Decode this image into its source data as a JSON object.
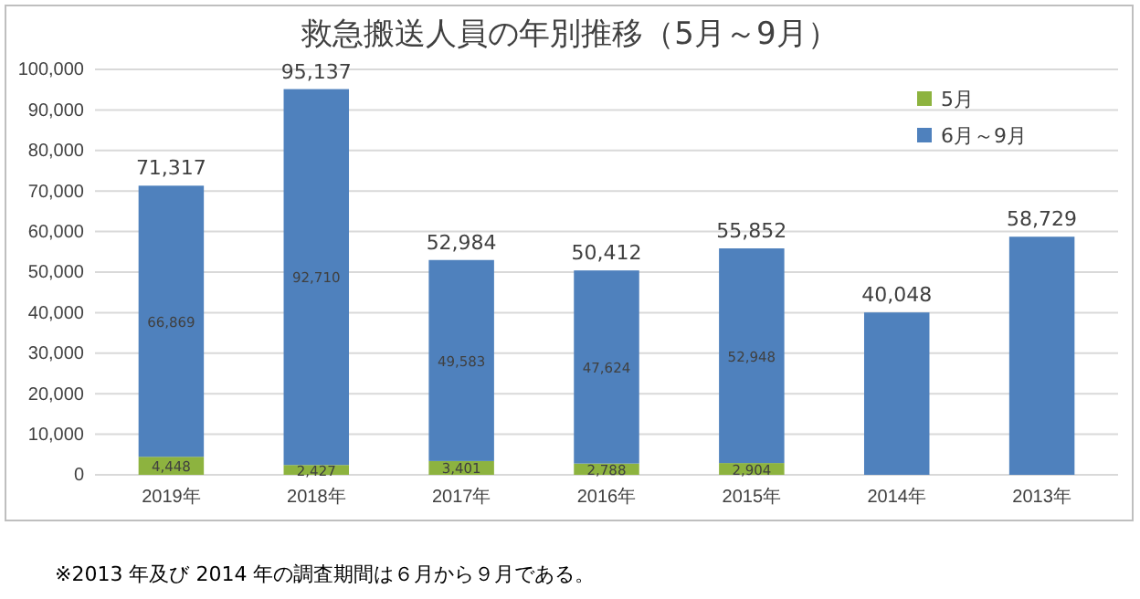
{
  "chart_data": {
    "type": "bar",
    "title": "救急搬送人員の年別推移（5月～9月）",
    "stacked": true,
    "categories": [
      "2019年",
      "2018年",
      "2017年",
      "2016年",
      "2015年",
      "2014年",
      "2013年"
    ],
    "series": [
      {
        "name": "5月",
        "color": "#8db33f",
        "values": [
          4448,
          2427,
          3401,
          2788,
          2904,
          null,
          null
        ],
        "value_labels": [
          "4,448",
          "2,427",
          "3,401",
          "2,788",
          "2,904",
          null,
          null
        ]
      },
      {
        "name": "6月～9月",
        "color": "#4f81bd",
        "values": [
          66869,
          92710,
          49583,
          47624,
          52948,
          40048,
          58729
        ],
        "value_labels": [
          "66,869",
          "92,710",
          "49,583",
          "47,624",
          "52,948",
          null,
          null
        ]
      }
    ],
    "totals": [
      "71,317",
      "95,137",
      "52,984",
      "50,412",
      "55,852",
      "40,048",
      "58,729"
    ],
    "ylim": [
      0,
      100000
    ],
    "yticks": [
      0,
      {
        "value": 10000,
        "label": "10,000"
      },
      {
        "value": 20000,
        "label": "20,000"
      },
      {
        "value": 30000,
        "label": "30,000"
      },
      {
        "value": 40000,
        "label": "40,000"
      },
      {
        "value": 50000,
        "label": "50,000"
      },
      {
        "value": 60000,
        "label": "60,000"
      },
      {
        "value": 70000,
        "label": "70,000"
      },
      {
        "value": 80000,
        "label": "80,000"
      },
      {
        "value": 90000,
        "label": "90,000"
      },
      {
        "value": 100000,
        "label": "100,000"
      }
    ],
    "grid": "y",
    "legend": "top right",
    "annotations": [
      "※2013 年及び 2014 年の調査期間は６月から９月である。"
    ]
  }
}
